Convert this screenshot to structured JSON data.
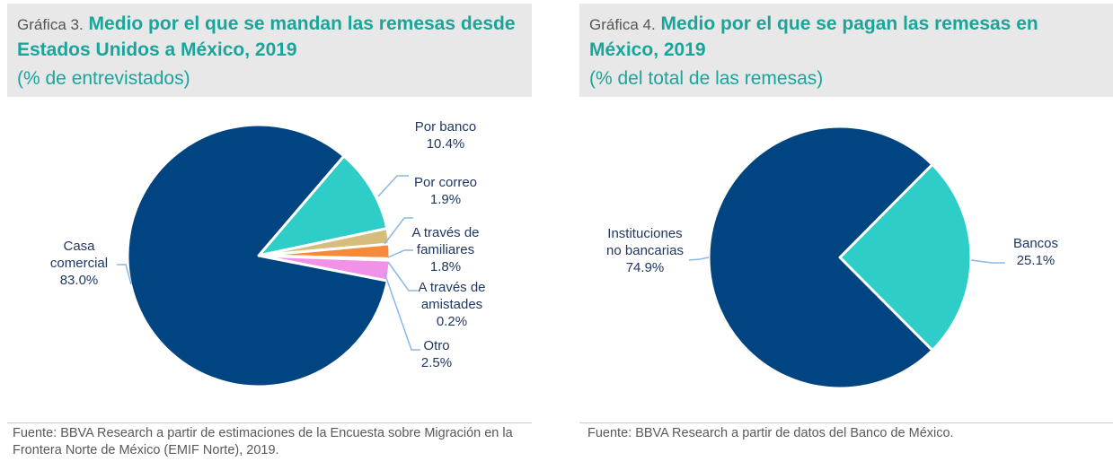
{
  "charts": [
    {
      "prefix": "Gráfica 3.",
      "title": "Medio por el que se mandan las remesas desde Estados Unidos a México, 2019",
      "subtitle": "(% de entrevistados)",
      "source": "Fuente: BBVA Research a partir de estimaciones de la Encuesta sobre Migración en la Frontera Norte de México (EMIF Norte), 2019."
    },
    {
      "prefix": "Gráfica 4.",
      "title": "Medio por el que se pagan las remesas en México, 2019",
      "subtitle": "(% del total de las remesas)",
      "source": "Fuente: BBVA Research a partir de datos del Banco de México."
    }
  ],
  "chart_data": [
    {
      "type": "pie",
      "title": "Medio por el que se mandan las remesas desde Estados Unidos a México, 2019",
      "subtitle": "(% de entrevistados)",
      "unit": "%",
      "slices": [
        {
          "label": "Por banco",
          "value": 10.4,
          "display": "10.4%",
          "color": "#2ecdc8"
        },
        {
          "label": "Por correo",
          "value": 1.9,
          "display": "1.9%",
          "color": "#d6bd7c"
        },
        {
          "label": "A través de familiares",
          "value": 1.8,
          "display": "1.8%",
          "color": "#f58a3c"
        },
        {
          "label": "A través de amistades",
          "value": 0.2,
          "display": "0.2%",
          "color": "#4a9ad4"
        },
        {
          "label": "Otro",
          "value": 2.5,
          "display": "2.5%",
          "color": "#f291e8"
        },
        {
          "label": "Casa comercial",
          "value": 83.0,
          "display": "83.0%",
          "color": "#004481"
        }
      ],
      "labels": [
        {
          "lines": [
            "Por banco",
            "10.4%"
          ]
        },
        {
          "lines": [
            "Por correo",
            "1.9%"
          ]
        },
        {
          "lines": [
            "A través de",
            "familiares",
            "1.8%"
          ]
        },
        {
          "lines": [
            "A través de",
            "amistades",
            "0.2%"
          ]
        },
        {
          "lines": [
            "Otro",
            "2.5%"
          ]
        },
        {
          "lines": [
            "Casa",
            "comercial",
            "83.0%"
          ]
        }
      ]
    },
    {
      "type": "pie",
      "title": "Medio por el que se pagan las remesas en México, 2019",
      "subtitle": "(% del total de las remesas)",
      "unit": "%",
      "slices": [
        {
          "label": "Bancos",
          "value": 25.1,
          "display": "25.1%",
          "color": "#2ecdc8"
        },
        {
          "label": "Instituciones no bancarias",
          "value": 74.9,
          "display": "74.9%",
          "color": "#004481"
        }
      ],
      "labels": [
        {
          "lines": [
            "Bancos",
            "25.1%"
          ]
        },
        {
          "lines": [
            "Instituciones",
            "no bancarias",
            "74.9%"
          ]
        }
      ]
    }
  ],
  "leader_line_color": "#8ab8e6"
}
